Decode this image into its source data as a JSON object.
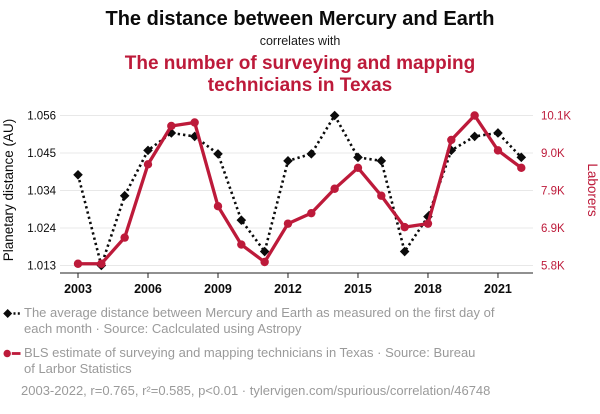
{
  "header": {
    "title": "The distance between Mercury and Earth",
    "subtitle": "correlates with",
    "title2_lines": [
      "The number of surveying and mapping",
      "technicians in Texas"
    ]
  },
  "colors": {
    "red": "#bd1a3a",
    "black": "#0b0b0b",
    "grid": "#e8e8e8",
    "axis": "#222222",
    "legend_text": "#9a9a9a"
  },
  "chart_data": {
    "type": "line",
    "x": [
      2003,
      2004,
      2005,
      2006,
      2007,
      2008,
      2009,
      2010,
      2011,
      2012,
      2013,
      2014,
      2015,
      2016,
      2017,
      2018,
      2019,
      2020,
      2021,
      2022
    ],
    "x_ticks": [
      2003,
      2006,
      2009,
      2012,
      2015,
      2018,
      2021
    ],
    "grid": "horizontal",
    "legend_position": "below",
    "series": [
      {
        "name": "Average distance between Mercury and Earth (AU)",
        "axis": "left",
        "color": "#0b0b0b",
        "line_style": "dotted",
        "marker": "diamond",
        "values": [
          1.039,
          1.013,
          1.033,
          1.046,
          1.051,
          1.05,
          1.045,
          1.026,
          1.017,
          1.043,
          1.045,
          1.056,
          1.044,
          1.043,
          1.017,
          1.027,
          1.046,
          1.05,
          1.051,
          1.044
        ]
      },
      {
        "name": "Surveying and mapping technicians in Texas (thousands)",
        "axis": "right",
        "color": "#bd1a3a",
        "line_style": "solid",
        "marker": "circle",
        "values": [
          5.85,
          5.85,
          6.6,
          8.7,
          9.8,
          9.9,
          7.5,
          6.4,
          5.9,
          7.0,
          7.3,
          8.0,
          8.6,
          7.8,
          6.9,
          7.0,
          9.4,
          10.1,
          9.1,
          8.6
        ]
      }
    ],
    "left_axis": {
      "label": "Planetary distance (AU)",
      "tick_labels": [
        "1.056",
        "1.045",
        "1.034",
        "1.024",
        "1.013"
      ],
      "min": 1.013,
      "max": 1.056
    },
    "right_axis": {
      "label": "Laborers",
      "tick_labels": [
        "10.1K",
        "9.0K",
        "7.9K",
        "6.9K",
        "5.8K"
      ],
      "min": 5.8,
      "max": 10.1
    }
  },
  "legend": {
    "items": [
      {
        "marker": "black-diamond-dotted",
        "lines": [
          "The average distance between Mercury and Earth as measured on the first day of",
          "each month · Source: Caclculated using Astropy"
        ]
      },
      {
        "marker": "red-circle-solid",
        "lines": [
          "BLS estimate of surveying and mapping technicians in Texas · Source: Bureau",
          "of Larbor Statistics"
        ]
      }
    ],
    "footer": "2003-2022, r=0.765, r²=0.585, p<0.01 · tylervigen.com/spurious/correlation/46748"
  }
}
